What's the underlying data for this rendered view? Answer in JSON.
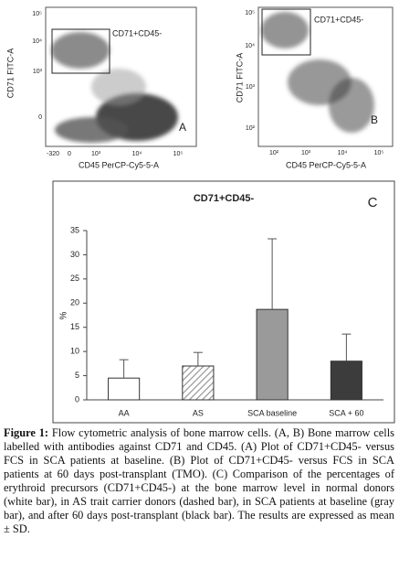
{
  "flow_plots": [
    {
      "x_label": "CD45 PerCP-Cy5-5-A",
      "y_label": "CD71 FITC-A",
      "gate_label": "CD71+CD45-",
      "panel": "A",
      "xticks": [
        "-320",
        "0",
        "10³",
        "10⁴",
        "10⁵"
      ],
      "yticks": [
        "10⁵",
        "10⁴",
        "10³",
        "0"
      ]
    },
    {
      "x_label": "CD45 PerCP-Cy5-5-A",
      "y_label": "CD71 FITC-A",
      "gate_label": "CD71+CD45-",
      "panel": "B",
      "xticks": [
        "10²",
        "10³",
        "10⁴",
        "10⁵"
      ],
      "yticks": [
        "10⁵",
        "10⁴",
        "10³",
        "10²"
      ]
    }
  ],
  "chart_data": {
    "type": "bar",
    "title": "CD71+CD45-",
    "panel": "C",
    "y_label": "%",
    "categories": [
      "AA",
      "AS",
      "SCA baseline",
      "SCA + 60"
    ],
    "values": [
      4.5,
      7.0,
      18.7,
      8.0
    ],
    "errors": [
      3.8,
      2.8,
      14.6,
      5.6
    ],
    "colors": [
      "#ffffff",
      "#ffffff",
      "#9a9a9a",
      "#3c3c3c"
    ],
    "hatch": [
      false,
      true,
      false,
      false
    ],
    "ylim": [
      0,
      35
    ],
    "yticks": [
      0,
      5,
      10,
      15,
      20,
      25,
      30,
      35
    ]
  },
  "caption": {
    "label": "Figure 1:",
    "text": " Flow cytometric analysis of bone marrow cells. (A, B) Bone marrow cells labelled with antibodies against CD71 and CD45. (A) Plot of CD71+CD45- versus FCS in SCA patients at baseline. (B) Plot of CD71+CD45- versus FCS in SCA patients at 60 days post-transplant (TMO). (C) Comparison of the percentages of erythroid precursors (CD71+CD45-) at the bone marrow level in normal donors (white bar), in AS trait carrier donors (dashed bar), in SCA patients at baseline (gray bar), and after 60 days post-transplant (black bar). The results are expressed as mean ± SD."
  }
}
